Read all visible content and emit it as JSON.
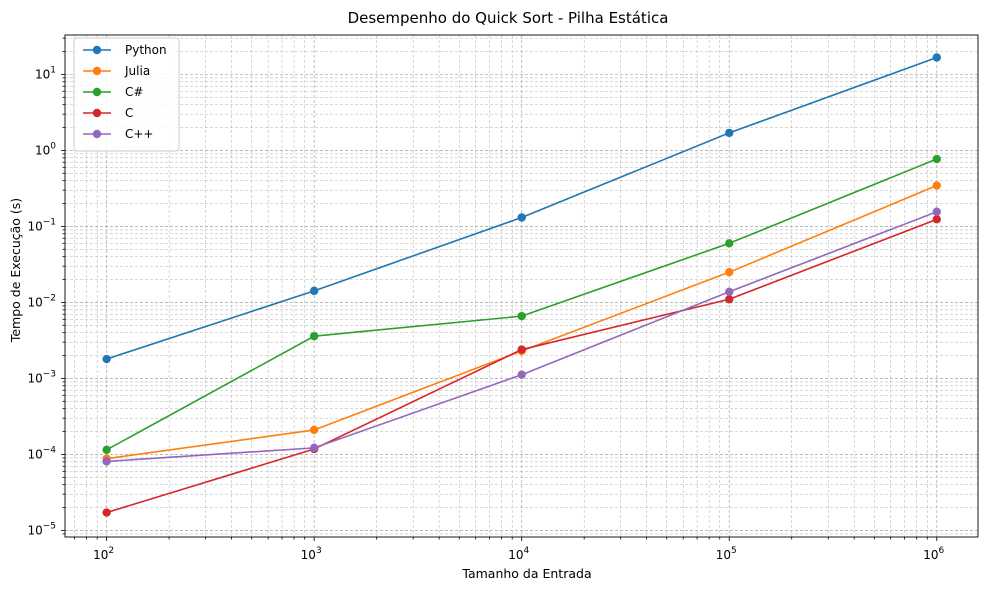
{
  "chart_data": {
    "type": "line",
    "title": "Desempenho do Quick Sort - Pilha Estática",
    "xlabel": "Tamanho da Entrada",
    "ylabel": "Tempo de Execução (s)",
    "x_scale": "log",
    "y_scale": "log",
    "x": [
      100,
      1000,
      10000,
      100000,
      1000000
    ],
    "x_tick_labels": [
      {
        "value": 100,
        "base": "10",
        "exp": "2"
      },
      {
        "value": 1000,
        "base": "10",
        "exp": "3"
      },
      {
        "value": 10000,
        "base": "10",
        "exp": "4"
      },
      {
        "value": 100000,
        "base": "10",
        "exp": "5"
      },
      {
        "value": 1000000,
        "base": "10",
        "exp": "6"
      }
    ],
    "y_tick_labels": [
      {
        "value": 1e-05,
        "base": "10",
        "exp": "−5"
      },
      {
        "value": 0.0001,
        "base": "10",
        "exp": "−4"
      },
      {
        "value": 0.001,
        "base": "10",
        "exp": "−3"
      },
      {
        "value": 0.01,
        "base": "10",
        "exp": "−2"
      },
      {
        "value": 0.1,
        "base": "10",
        "exp": "−1"
      },
      {
        "value": 1,
        "base": "10",
        "exp": "0"
      },
      {
        "value": 10,
        "base": "10",
        "exp": "1"
      }
    ],
    "xlim": [
      63,
      1580000
    ],
    "ylim": [
      8.2e-06,
      33
    ],
    "grid": "major and minor, dashed",
    "legend_position": "top-left",
    "series": [
      {
        "name": "Python",
        "color": "#1f77b4",
        "values": [
          0.0018,
          0.0142,
          0.131,
          1.7,
          16.7
        ]
      },
      {
        "name": "Julia",
        "color": "#ff7f0e",
        "values": [
          8.8e-05,
          0.00021,
          0.0023,
          0.025,
          0.345
        ]
      },
      {
        "name": "C#",
        "color": "#2ca02c",
        "values": [
          0.000115,
          0.0036,
          0.0066,
          0.06,
          0.77
        ]
      },
      {
        "name": "C",
        "color": "#d62728",
        "values": [
          1.72e-05,
          0.000118,
          0.0024,
          0.011,
          0.124
        ]
      },
      {
        "name": "C++",
        "color": "#9467bd",
        "values": [
          8.1e-05,
          0.000122,
          0.00112,
          0.0138,
          0.156
        ]
      }
    ]
  }
}
